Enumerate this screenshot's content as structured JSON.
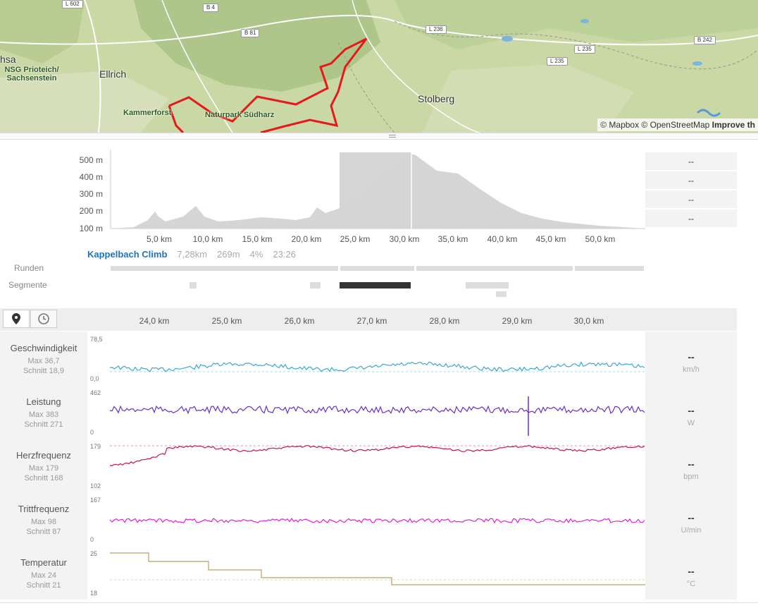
{
  "map": {
    "attribution_prefix": "© Mapbox © OpenStreetMap",
    "attribution_link": "Improve th",
    "places": {
      "ellrich": "Ellrich",
      "stolberg": "Stolberg",
      "kammerforst": "Kammerforst",
      "naturpark": "Naturpark Südharz",
      "nsg": "NSG Prioteich/",
      "nsg2": "Sachsenstein",
      "hsa": "hsa"
    },
    "roads": {
      "l602": "L 602",
      "b4": "B 4",
      "b81": "B 81",
      "l236": "L 236",
      "l235a": "L 235",
      "l235b": "L 235",
      "b242": "B 242"
    }
  },
  "elevation": {
    "y_ticks": [
      "500 m",
      "400 m",
      "300 m",
      "200 m",
      "100 m"
    ],
    "x_ticks": [
      "5,0 km",
      "10,0 km",
      "15,0 km",
      "20,0 km",
      "25,0 km",
      "30,0 km",
      "35,0 km",
      "40,0 km",
      "45,0 km",
      "50,0 km"
    ],
    "side_values": [
      "--",
      "--",
      "--",
      "--"
    ],
    "segment": {
      "name": "Kappelbach Climb",
      "distance": "7,28km",
      "elevation": "269m",
      "grade": "4%",
      "time": "23:26"
    },
    "rows": {
      "laps": "Runden",
      "segments": "Segmente"
    }
  },
  "toolbar": {
    "map_icon": "map-pin-icon",
    "time_icon": "clock-icon",
    "km_ticks": [
      "24,0 km",
      "25,0 km",
      "26,0 km",
      "27,0 km",
      "28,0 km",
      "29,0 km",
      "30,0 km"
    ]
  },
  "metrics": [
    {
      "title": "Geschwindigkeit",
      "max": "Max 36,7",
      "avg": "Schnitt 18,9",
      "top": "78,5",
      "bottom": "0,0",
      "value": "--",
      "unit": "km/h",
      "color": "#3aa8d8"
    },
    {
      "title": "Leistung",
      "max": "Max 383",
      "avg": "Schnitt 271",
      "top": "462",
      "bottom": "0",
      "value": "--",
      "unit": "W",
      "color": "#6a2fc8"
    },
    {
      "title": "Herzfrequenz",
      "max": "Max 179",
      "avg": "Schnitt 168",
      "top": "179",
      "bottom": "102",
      "value": "--",
      "unit": "bpm",
      "color": "#c0184a"
    },
    {
      "title": "Trittfrequenz",
      "max": "Max 98",
      "avg": "Schnitt 87",
      "top": "167",
      "bottom": "0",
      "value": "--",
      "unit": "U/min",
      "color": "#e020d8"
    },
    {
      "title": "Temperatur",
      "max": "Max 24",
      "avg": "Schnitt 21",
      "top": "25",
      "bottom": "18",
      "value": "--",
      "unit": "°C",
      "color": "#b8a060"
    }
  ]
}
